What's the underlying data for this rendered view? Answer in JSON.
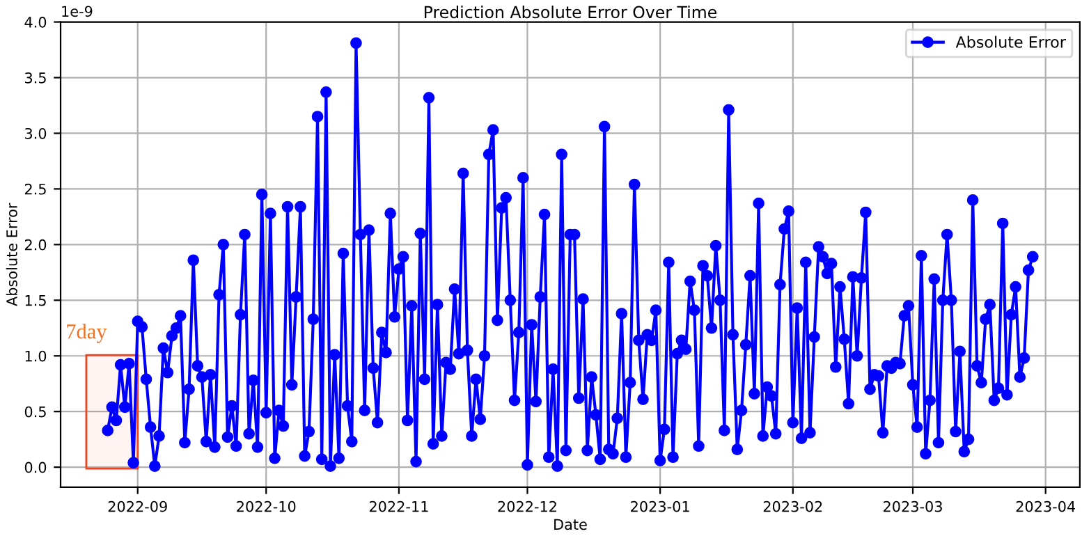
{
  "chart_data": {
    "type": "line",
    "title": "Prediction Absolute Error Over Time",
    "xlabel": "Date",
    "ylabel": "Absolute Error",
    "x": [
      "2022-08-25",
      "2022-08-26",
      "2022-08-27",
      "2022-08-28",
      "2022-08-29",
      "2022-08-30",
      "2022-08-31",
      "2022-09-01",
      "2022-09-02",
      "2022-09-03",
      "2022-09-04",
      "2022-09-05",
      "2022-09-06",
      "2022-09-07",
      "2022-09-08",
      "2022-09-09",
      "2022-09-10",
      "2022-09-11",
      "2022-09-12",
      "2022-09-13",
      "2022-09-14",
      "2022-09-15",
      "2022-09-16",
      "2022-09-17",
      "2022-09-18",
      "2022-09-19",
      "2022-09-20",
      "2022-09-21",
      "2022-09-22",
      "2022-09-23",
      "2022-09-24",
      "2022-09-25",
      "2022-09-26",
      "2022-09-27",
      "2022-09-28",
      "2022-09-29",
      "2022-09-30",
      "2022-10-01",
      "2022-10-02",
      "2022-10-03",
      "2022-10-04",
      "2022-10-05",
      "2022-10-06",
      "2022-10-07",
      "2022-10-08",
      "2022-10-09",
      "2022-10-10",
      "2022-10-11",
      "2022-10-12",
      "2022-10-13",
      "2022-10-14",
      "2022-10-15",
      "2022-10-16",
      "2022-10-17",
      "2022-10-18",
      "2022-10-19",
      "2022-10-20",
      "2022-10-21",
      "2022-10-22",
      "2022-10-23",
      "2022-10-24",
      "2022-10-25",
      "2022-10-26",
      "2022-10-27",
      "2022-10-28",
      "2022-10-29",
      "2022-10-30",
      "2022-10-31",
      "2022-11-01",
      "2022-11-02",
      "2022-11-03",
      "2022-11-04",
      "2022-11-05",
      "2022-11-06",
      "2022-11-07",
      "2022-11-08",
      "2022-11-09",
      "2022-11-10",
      "2022-11-11",
      "2022-11-12",
      "2022-11-13",
      "2022-11-14",
      "2022-11-15",
      "2022-11-16",
      "2022-11-17",
      "2022-11-18",
      "2022-11-19",
      "2022-11-20",
      "2022-11-21",
      "2022-11-22",
      "2022-11-23",
      "2022-11-24",
      "2022-11-25",
      "2022-11-26",
      "2022-11-27",
      "2022-11-28",
      "2022-11-29",
      "2022-11-30",
      "2022-12-01",
      "2022-12-02",
      "2022-12-03",
      "2022-12-04",
      "2022-12-05",
      "2022-12-06",
      "2022-12-07",
      "2022-12-08",
      "2022-12-09",
      "2022-12-10",
      "2022-12-11",
      "2022-12-12",
      "2022-12-13",
      "2022-12-14",
      "2022-12-15",
      "2022-12-16",
      "2022-12-17",
      "2022-12-18",
      "2022-12-19",
      "2022-12-20",
      "2022-12-21",
      "2022-12-22",
      "2022-12-23",
      "2022-12-24",
      "2022-12-25",
      "2022-12-26",
      "2022-12-27",
      "2022-12-28",
      "2022-12-29",
      "2022-12-30",
      "2022-12-31",
      "2023-01-01",
      "2023-01-02",
      "2023-01-03",
      "2023-01-04",
      "2023-01-05",
      "2023-01-06",
      "2023-01-07",
      "2023-01-08",
      "2023-01-09",
      "2023-01-10",
      "2023-01-11",
      "2023-01-12",
      "2023-01-13",
      "2023-01-14",
      "2023-01-15",
      "2023-01-16",
      "2023-01-17",
      "2023-01-18",
      "2023-01-19",
      "2023-01-20",
      "2023-01-21",
      "2023-01-22",
      "2023-01-23",
      "2023-01-24",
      "2023-01-25",
      "2023-01-26",
      "2023-01-27",
      "2023-01-28",
      "2023-01-29",
      "2023-01-30",
      "2023-01-31",
      "2023-02-01",
      "2023-02-02",
      "2023-02-03",
      "2023-02-04",
      "2023-02-05",
      "2023-02-06",
      "2023-02-07",
      "2023-02-08",
      "2023-02-09",
      "2023-02-10",
      "2023-02-11",
      "2023-02-12",
      "2023-02-13",
      "2023-02-14",
      "2023-02-15",
      "2023-02-16",
      "2023-02-17",
      "2023-02-18",
      "2023-02-19",
      "2023-02-20",
      "2023-02-21",
      "2023-02-22",
      "2023-02-23",
      "2023-02-24",
      "2023-02-25",
      "2023-02-26",
      "2023-02-27",
      "2023-02-28",
      "2023-03-01",
      "2023-03-02",
      "2023-03-03",
      "2023-03-04",
      "2023-03-05",
      "2023-03-06",
      "2023-03-07",
      "2023-03-08",
      "2023-03-09",
      "2023-03-10",
      "2023-03-11",
      "2023-03-12",
      "2023-03-13",
      "2023-03-14",
      "2023-03-15",
      "2023-03-16",
      "2023-03-17",
      "2023-03-18",
      "2023-03-19",
      "2023-03-20",
      "2023-03-21",
      "2023-03-22",
      "2023-03-23",
      "2023-03-24",
      "2023-03-25",
      "2023-03-26",
      "2023-03-27",
      "2023-03-28",
      "2023-03-29"
    ],
    "series": [
      {
        "name": "Absolute Error",
        "color": "#0000ff",
        "values": [
          0.33,
          0.54,
          0.42,
          0.92,
          0.54,
          0.93,
          0.04,
          1.31,
          1.26,
          0.79,
          0.36,
          0.01,
          0.28,
          1.07,
          0.85,
          1.18,
          1.25,
          1.36,
          0.22,
          0.7,
          1.86,
          0.91,
          0.81,
          0.23,
          0.83,
          0.18,
          1.55,
          2.0,
          0.27,
          0.55,
          0.19,
          1.37,
          2.09,
          0.3,
          0.78,
          0.18,
          2.45,
          0.49,
          2.28,
          0.08,
          0.51,
          0.37,
          2.34,
          0.74,
          1.53,
          2.34,
          0.1,
          0.32,
          1.33,
          3.15,
          0.07,
          3.37,
          0.01,
          1.01,
          0.08,
          1.92,
          0.55,
          0.23,
          3.81,
          2.09,
          0.51,
          2.13,
          0.89,
          0.4,
          1.21,
          1.03,
          2.28,
          1.35,
          1.78,
          1.89,
          0.42,
          1.45,
          0.05,
          2.1,
          0.79,
          3.32,
          0.21,
          1.46,
          0.28,
          0.94,
          0.88,
          1.6,
          1.02,
          2.64,
          1.05,
          0.28,
          0.79,
          0.43,
          1.0,
          2.81,
          3.03,
          1.32,
          2.33,
          2.42,
          1.5,
          0.6,
          1.21,
          2.6,
          0.02,
          1.28,
          0.59,
          1.53,
          2.27,
          0.09,
          0.88,
          0.01,
          2.81,
          0.15,
          2.09,
          2.09,
          0.62,
          1.51,
          0.15,
          0.81,
          0.47,
          0.07,
          3.06,
          0.16,
          0.12,
          0.44,
          1.38,
          0.09,
          0.76,
          2.54,
          1.14,
          0.61,
          1.19,
          1.14,
          1.41,
          0.06,
          0.34,
          1.84,
          0.09,
          1.02,
          1.14,
          1.06,
          1.67,
          1.41,
          0.19,
          1.81,
          1.72,
          1.25,
          1.99,
          1.5,
          0.33,
          3.21,
          1.19,
          0.16,
          0.51,
          1.1,
          1.72,
          0.66,
          2.37,
          0.28,
          0.72,
          0.64,
          0.3,
          1.64,
          2.14,
          2.3,
          0.4,
          1.43,
          0.26,
          1.84,
          0.31,
          1.17,
          1.98,
          1.89,
          1.74,
          1.83,
          0.9,
          1.62,
          1.15,
          0.57,
          1.71,
          1.0,
          1.7,
          2.29,
          0.7,
          0.83,
          0.82,
          0.31,
          0.91,
          0.89,
          0.94,
          0.93,
          1.36,
          1.45,
          0.74,
          0.36,
          1.9,
          0.12,
          0.6,
          1.69,
          0.22,
          1.5,
          2.09,
          1.5,
          0.32,
          1.04,
          0.14,
          0.25,
          2.4,
          0.91,
          0.76,
          1.33,
          1.46,
          0.6,
          0.71,
          2.19,
          0.65,
          1.37,
          1.62,
          0.81,
          0.98,
          1.77,
          1.89
        ]
      }
    ],
    "xlim": [
      "2022-08-14",
      "2023-04-09"
    ],
    "xticks": [
      {
        "value": "2022-09-01",
        "label": "2022-09"
      },
      {
        "value": "2022-10-01",
        "label": "2022-10"
      },
      {
        "value": "2022-11-01",
        "label": "2022-11"
      },
      {
        "value": "2022-12-01",
        "label": "2022-12"
      },
      {
        "value": "2023-01-01",
        "label": "2023-01"
      },
      {
        "value": "2023-02-01",
        "label": "2023-02"
      },
      {
        "value": "2023-03-01",
        "label": "2023-03"
      },
      {
        "value": "2023-04-01",
        "label": "2023-04"
      }
    ],
    "ylim": [
      -0.18,
      4.0
    ],
    "yticks": [
      {
        "value": 0,
        "label": "0.0"
      },
      {
        "value": 0.5,
        "label": "0.5"
      },
      {
        "value": 1,
        "label": "1.0"
      },
      {
        "value": 1.5,
        "label": "1.5"
      },
      {
        "value": 2,
        "label": "2.0"
      },
      {
        "value": 2.5,
        "label": "2.5"
      },
      {
        "value": 3,
        "label": "3.0"
      },
      {
        "value": 3.5,
        "label": "3.5"
      },
      {
        "value": 4,
        "label": "4.0"
      }
    ],
    "annotations": [
      "1e-9"
    ],
    "bands": [
      {
        "axis": "x",
        "from": "2022-08-20",
        "to": "2022-09-01",
        "label": "7day",
        "color": "#ee4422"
      }
    ],
    "grid": true,
    "legend": "top right",
    "marker": "circle",
    "line_style": "solid"
  }
}
